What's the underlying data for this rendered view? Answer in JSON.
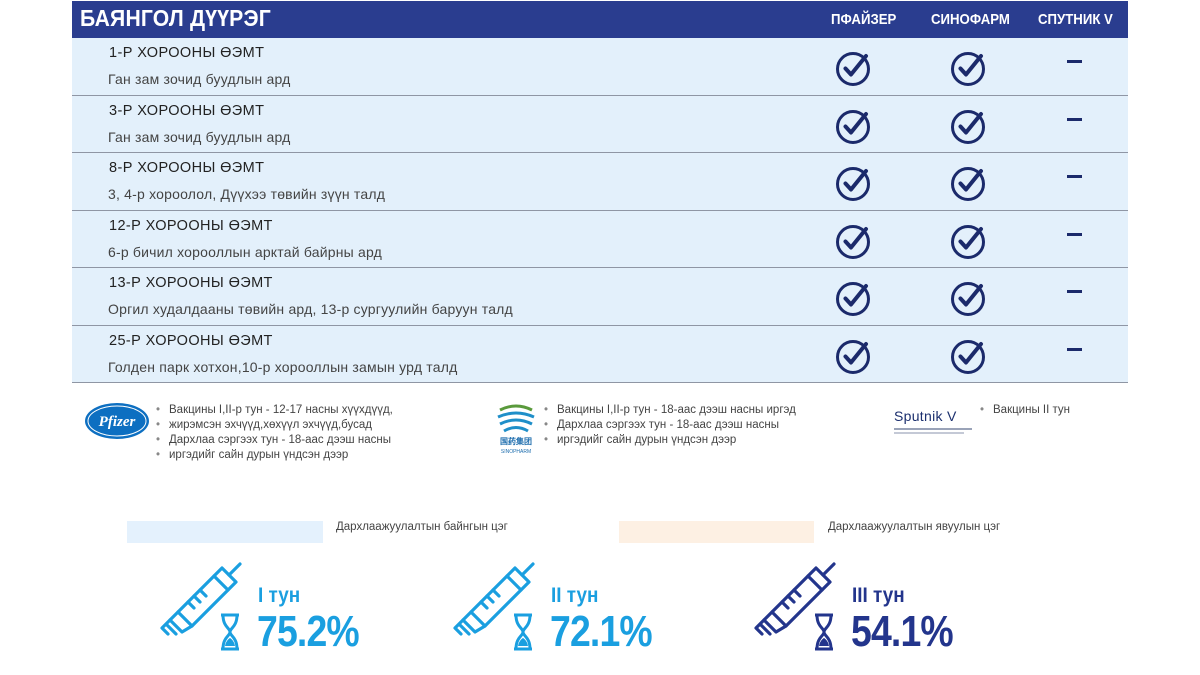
{
  "header": {
    "district": "БАЯНГОЛ ДҮҮРЭГ",
    "columns": [
      "ПФАЙЗЕР",
      "СИНОФАРМ",
      "СПУТНИК V"
    ]
  },
  "rows": [
    {
      "name": "1-Р ХОРООНЫ ӨЭМТ",
      "address": "Ган зам зочид буудлын ард",
      "pfizer": true,
      "sinopharm": true,
      "sputnik": "–"
    },
    {
      "name": "3-Р ХОРООНЫ ӨЭМТ",
      "address": "Ган зам зочид буудлын ард",
      "pfizer": true,
      "sinopharm": true,
      "sputnik": "–"
    },
    {
      "name": "8-Р ХОРООНЫ ӨЭМТ",
      "address": "3, 4-р хороолол, Дүүхээ төвийн зүүн талд",
      "pfizer": true,
      "sinopharm": true,
      "sputnik": "–"
    },
    {
      "name": "12-Р ХОРООНЫ ӨЭМТ",
      "address": "6-р бичил хорооллын арктай байрны ард",
      "pfizer": true,
      "sinopharm": true,
      "sputnik": "–"
    },
    {
      "name": "13-Р ХОРООНЫ ӨЭМТ",
      "address": "Оргил худалдааны төвийн ард, 13-р сургуулийн баруун талд",
      "pfizer": true,
      "sinopharm": true,
      "sputnik": "–"
    },
    {
      "name": "25-Р ХОРООНЫ ӨЭМТ",
      "address": "Голден парк хотхон,10-р хорооллын замын урд талд",
      "pfizer": true,
      "sinopharm": true,
      "sputnik": "–"
    }
  ],
  "vaccines": {
    "pfizer": {
      "logo_text": "Pfizer",
      "notes": [
        "Вакцины I,II-р тун - 12-17 насны хүүхдүүд,",
        "жирэмсэн эхчүүд,хөхүүл эхчүүд,бусад",
        "Дархлаа сэргээх тун - 18-аас дээш насны",
        "иргэдийг сайн дурын үндсэн дээр"
      ]
    },
    "sinopharm": {
      "logo_text": "国药集团",
      "logo_sub": "SINOPHARM",
      "notes": [
        "Вакцины I,II-р тун - 18-аас дээш насны иргэд",
        "Дархлаа сэргээх тун - 18-аас дээш насны",
        "иргэдийг сайн дурын үндсэн дээр"
      ]
    },
    "sputnik": {
      "logo_text": "Sputnik V",
      "notes": [
        "Вакцины II тун"
      ]
    }
  },
  "legend": {
    "fixed": "Дархлаажуулалтын байнгын цэг",
    "mobile": "Дархлаажуулалтын явуулын цэг"
  },
  "doses": [
    {
      "label": "I тун",
      "percent": "75.2%"
    },
    {
      "label": "II тун",
      "percent": "72.1%"
    },
    {
      "label": "III тун",
      "percent": "54.1%"
    }
  ],
  "colors": {
    "header_bg": "#2a3d8f",
    "row_bg": "#e3f0fb",
    "check": "#1b2a6b",
    "fixed_swatch": "#e4f1fd",
    "mobile_swatch": "#fdf0e3",
    "dose_light": "#1a9fe0",
    "dose_dark": "#23358c"
  }
}
